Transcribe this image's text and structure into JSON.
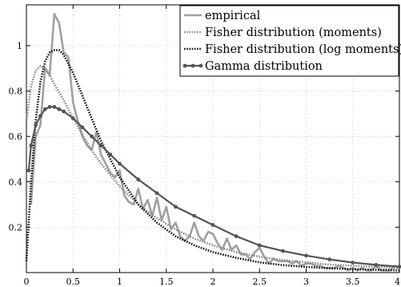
{
  "chart_data": {
    "type": "line",
    "title": "",
    "xlabel": "",
    "ylabel": "",
    "xlim": [
      0,
      4
    ],
    "ylim": [
      0,
      1.18
    ],
    "grid": true,
    "legend_position": "top-right",
    "x_ticks": [
      0,
      0.5,
      1,
      1.5,
      2,
      2.5,
      3,
      3.5,
      4
    ],
    "x_tick_labels": [
      "0",
      "0.5",
      "1",
      "1.5",
      "2",
      "2.5",
      "3",
      "3.5",
      "4"
    ],
    "y_ticks": [
      0.2,
      0.4,
      0.6,
      0.8,
      1
    ],
    "y_tick_labels": [
      "0.2",
      "0.4",
      "0.6",
      "0.8",
      "1"
    ],
    "series": [
      {
        "name": "empirical",
        "color": "#a0a0a0",
        "style": "solid",
        "x": [
          0.05,
          0.1,
          0.15,
          0.2,
          0.25,
          0.3,
          0.35,
          0.4,
          0.45,
          0.5,
          0.55,
          0.6,
          0.65,
          0.7,
          0.75,
          0.8,
          0.85,
          0.9,
          0.95,
          1.0,
          1.05,
          1.1,
          1.15,
          1.2,
          1.25,
          1.3,
          1.35,
          1.4,
          1.45,
          1.5,
          1.55,
          1.6,
          1.65,
          1.7,
          1.75,
          1.8,
          1.85,
          1.9,
          1.95,
          2.0,
          2.05,
          2.1,
          2.15,
          2.2,
          2.25,
          2.3,
          2.35,
          2.4,
          2.45,
          2.5,
          2.55,
          2.6,
          2.65,
          2.7,
          2.75,
          2.8,
          2.85,
          2.9,
          2.95,
          3.0,
          3.05,
          3.1,
          3.15,
          3.2,
          3.25,
          3.3,
          3.35,
          3.4,
          3.45,
          3.5,
          3.55,
          3.6,
          3.65,
          3.7,
          3.75,
          3.8,
          3.85,
          3.9,
          3.95,
          4.0
        ],
        "y": [
          0.3,
          0.6,
          0.65,
          0.9,
          0.87,
          1.14,
          1.1,
          0.97,
          0.95,
          0.75,
          0.67,
          0.6,
          0.56,
          0.54,
          0.62,
          0.52,
          0.48,
          0.44,
          0.42,
          0.45,
          0.34,
          0.31,
          0.3,
          0.37,
          0.28,
          0.32,
          0.25,
          0.33,
          0.23,
          0.29,
          0.19,
          0.22,
          0.16,
          0.14,
          0.16,
          0.22,
          0.16,
          0.14,
          0.18,
          0.17,
          0.13,
          0.1,
          0.15,
          0.1,
          0.12,
          0.08,
          0.08,
          0.06,
          0.09,
          0.11,
          0.07,
          0.04,
          0.06,
          0.05,
          0.05,
          0.05,
          0.04,
          0.05,
          0.03,
          0.04,
          0.04,
          0.03,
          0.03,
          0.02,
          0.02,
          0.02,
          0.03,
          0.02,
          0.01,
          0.02,
          0.01,
          0.02,
          0.01,
          0.01,
          0.03,
          0.01,
          0.01,
          0.01,
          0.03,
          0.02
        ]
      },
      {
        "name": "Fisher distribution (moments)",
        "color": "#8a8a8a",
        "style": "dotted",
        "x": [
          0.0,
          0.05,
          0.1,
          0.15,
          0.2,
          0.25,
          0.3,
          0.4,
          0.5,
          0.6,
          0.7,
          0.8,
          0.9,
          1.0,
          1.2,
          1.4,
          1.6,
          1.8,
          2.0,
          2.25,
          2.5,
          2.75,
          3.0,
          3.25,
          3.5,
          3.75,
          4.0
        ],
        "y": [
          0.67,
          0.82,
          0.89,
          0.91,
          0.9,
          0.87,
          0.83,
          0.76,
          0.68,
          0.61,
          0.54,
          0.48,
          0.43,
          0.38,
          0.3,
          0.24,
          0.19,
          0.15,
          0.12,
          0.09,
          0.07,
          0.055,
          0.045,
          0.035,
          0.03,
          0.025,
          0.02
        ]
      },
      {
        "name": "Fisher distribution (log moments)",
        "color": "#111111",
        "style": "dotted",
        "x": [
          0.0,
          0.05,
          0.1,
          0.15,
          0.2,
          0.25,
          0.3,
          0.35,
          0.4,
          0.5,
          0.6,
          0.7,
          0.8,
          0.9,
          1.0,
          1.1,
          1.2,
          1.4,
          1.6,
          1.8,
          2.0,
          2.25,
          2.5,
          2.75,
          3.0,
          3.25,
          3.5,
          3.75,
          4.0
        ],
        "y": [
          0.05,
          0.4,
          0.67,
          0.84,
          0.93,
          0.97,
          0.98,
          0.98,
          0.96,
          0.88,
          0.78,
          0.68,
          0.58,
          0.5,
          0.42,
          0.36,
          0.3,
          0.22,
          0.16,
          0.12,
          0.09,
          0.065,
          0.045,
          0.033,
          0.025,
          0.019,
          0.015,
          0.012,
          0.01
        ]
      },
      {
        "name": "Gamma distribution",
        "color": "#555555",
        "style": "solid-markers",
        "x": [
          0.025,
          0.05,
          0.1,
          0.15,
          0.2,
          0.25,
          0.3,
          0.35,
          0.4,
          0.5,
          0.6,
          0.7,
          0.8,
          0.9,
          1.0,
          1.2,
          1.4,
          1.6,
          1.8,
          2.0,
          2.25,
          2.5,
          2.75,
          3.0,
          3.25,
          3.5,
          3.75,
          4.0
        ],
        "y": [
          0.45,
          0.56,
          0.65,
          0.69,
          0.72,
          0.73,
          0.73,
          0.72,
          0.71,
          0.68,
          0.64,
          0.6,
          0.56,
          0.52,
          0.48,
          0.41,
          0.35,
          0.29,
          0.25,
          0.21,
          0.16,
          0.12,
          0.095,
          0.075,
          0.058,
          0.044,
          0.034,
          0.026
        ]
      }
    ]
  }
}
